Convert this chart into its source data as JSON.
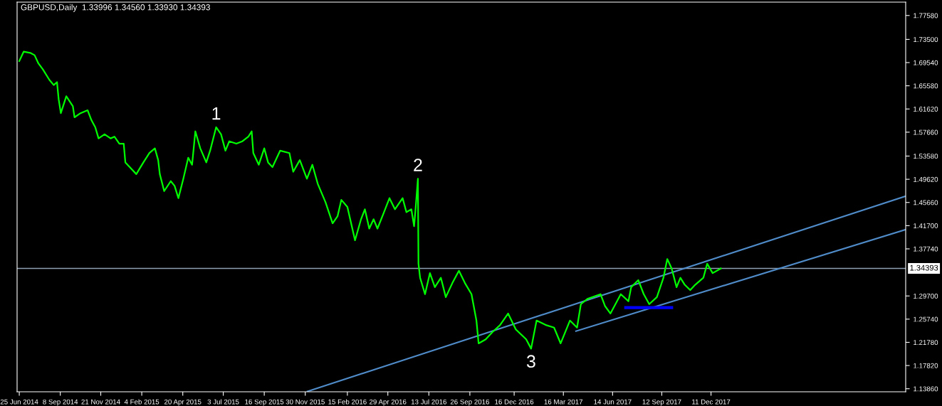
{
  "chart_data": {
    "type": "line",
    "title": "GBPUSD,Daily  1.33996 1.34560 1.33930 1.34393",
    "series": [
      {
        "color": "#00ff00",
        "x": [
          "2014-06-25",
          "2014-07-03",
          "2014-07-15",
          "2014-07-23",
          "2014-07-30",
          "2014-08-07",
          "2014-08-19",
          "2014-08-27",
          "2014-09-02",
          "2014-09-05",
          "2014-09-09",
          "2014-09-19",
          "2014-10-01",
          "2014-10-04",
          "2014-10-15",
          "2014-10-28",
          "2014-11-04",
          "2014-11-11",
          "2014-11-17",
          "2014-11-28",
          "2014-12-09",
          "2014-12-16",
          "2014-12-25",
          "2015-01-02",
          "2015-01-05",
          "2015-01-13",
          "2015-01-25",
          "2015-02-07",
          "2015-02-18",
          "2015-02-28",
          "2015-03-06",
          "2015-03-09",
          "2015-03-17",
          "2015-03-29",
          "2015-04-05",
          "2015-04-12",
          "2015-04-21",
          "2015-04-30",
          "2015-05-07",
          "2015-05-13",
          "2015-05-22",
          "2015-06-02",
          "2015-06-09",
          "2015-06-20",
          "2015-06-29",
          "2015-07-07",
          "2015-07-14",
          "2015-07-27",
          "2015-08-07",
          "2015-08-18",
          "2015-08-24",
          "2015-08-27",
          "2015-09-06",
          "2015-09-16",
          "2015-09-23",
          "2015-10-01",
          "2015-10-15",
          "2015-11-01",
          "2015-11-08",
          "2015-11-20",
          "2015-12-03",
          "2015-12-13",
          "2015-12-23",
          "2016-01-06",
          "2016-01-19",
          "2016-01-28",
          "2016-02-04",
          "2016-02-15",
          "2016-02-29",
          "2016-03-11",
          "2016-03-18",
          "2016-03-26",
          "2016-04-03",
          "2016-04-10",
          "2016-04-22",
          "2016-05-02",
          "2016-05-12",
          "2016-05-26",
          "2016-06-02",
          "2016-06-11",
          "2016-06-16",
          "2016-06-19",
          "2016-06-23",
          "2016-06-24",
          "2016-06-27",
          "2016-07-06",
          "2016-07-15",
          "2016-07-24",
          "2016-08-04",
          "2016-08-13",
          "2016-08-25",
          "2016-09-06",
          "2016-09-17",
          "2016-09-29",
          "2016-10-08",
          "2016-10-12",
          "2016-10-25",
          "2016-11-06",
          "2016-11-20",
          "2016-12-05",
          "2016-12-19",
          "2017-01-07",
          "2017-01-16",
          "2017-01-26",
          "2017-02-13",
          "2017-02-27",
          "2017-03-11",
          "2017-03-28",
          "2017-04-10",
          "2017-04-17",
          "2017-04-29",
          "2017-05-23",
          "2017-05-31",
          "2017-06-10",
          "2017-06-29",
          "2017-07-13",
          "2017-07-18",
          "2017-07-31",
          "2017-08-10",
          "2017-08-20",
          "2017-09-03",
          "2017-09-15",
          "2017-09-22",
          "2017-09-30",
          "2017-10-09",
          "2017-10-16",
          "2017-10-24",
          "2017-11-03",
          "2017-11-12",
          "2017-11-27",
          "2017-12-04",
          "2017-12-14",
          "2017-12-29"
        ],
        "values": [
          1.698,
          1.714,
          1.712,
          1.708,
          1.694,
          1.684,
          1.666,
          1.657,
          1.662,
          1.633,
          1.609,
          1.638,
          1.621,
          1.602,
          1.609,
          1.614,
          1.597,
          1.585,
          1.566,
          1.573,
          1.566,
          1.569,
          1.557,
          1.557,
          1.525,
          1.517,
          1.505,
          1.525,
          1.541,
          1.549,
          1.529,
          1.505,
          1.476,
          1.493,
          1.485,
          1.464,
          1.497,
          1.533,
          1.521,
          1.578,
          1.549,
          1.525,
          1.545,
          1.585,
          1.573,
          1.545,
          1.561,
          1.557,
          1.561,
          1.569,
          1.578,
          1.541,
          1.521,
          1.549,
          1.525,
          1.517,
          1.545,
          1.541,
          1.509,
          1.529,
          1.497,
          1.521,
          1.488,
          1.457,
          1.421,
          1.433,
          1.461,
          1.449,
          1.392,
          1.428,
          1.445,
          1.412,
          1.428,
          1.412,
          1.44,
          1.464,
          1.445,
          1.464,
          1.44,
          1.445,
          1.416,
          1.449,
          1.497,
          1.352,
          1.328,
          1.3,
          1.336,
          1.312,
          1.328,
          1.295,
          1.319,
          1.34,
          1.319,
          1.3,
          1.255,
          1.216,
          1.223,
          1.235,
          1.247,
          1.267,
          1.24,
          1.223,
          1.207,
          1.255,
          1.247,
          1.243,
          1.216,
          1.255,
          1.243,
          1.283,
          1.292,
          1.3,
          1.28,
          1.267,
          1.3,
          1.288,
          1.312,
          1.324,
          1.3,
          1.283,
          1.295,
          1.328,
          1.36,
          1.344,
          1.312,
          1.328,
          1.316,
          1.307,
          1.316,
          1.328,
          1.352,
          1.336,
          1.344
        ]
      },
      {
        "type": "line",
        "color": "#4f8cc9",
        "x": [
          "2015-12-04",
          "2018-12-01"
        ],
        "values": [
          1.134,
          1.467
        ]
      },
      {
        "type": "line",
        "color": "#4f8cc9",
        "x": [
          "2017-04-08",
          "2018-12-01"
        ],
        "values": [
          1.237,
          1.41
        ]
      },
      {
        "type": "line",
        "color": "#0000ff",
        "x": [
          "2017-07-08",
          "2017-09-30"
        ],
        "values": [
          1.277,
          1.277
        ]
      }
    ],
    "ref_lines": [
      {
        "axis": "y",
        "value": 1.34393,
        "label": "1.34393",
        "color": "#8ea0b4"
      }
    ],
    "annotations": [
      {
        "text": "1",
        "x": "2015-06-20",
        "y": 1.585
      },
      {
        "text": "2",
        "x": "2016-06-23",
        "y": 1.497
      },
      {
        "text": "3",
        "x": "2017-01-16",
        "y": 1.207
      }
    ],
    "xlim": [
      "2014-06-21",
      "2018-12-02"
    ],
    "xticks": [
      {
        "value": "2014-06-25",
        "label": "25 Jun 2014"
      },
      {
        "value": "2014-09-08",
        "label": "8 Sep 2014"
      },
      {
        "value": "2014-11-21",
        "label": "21 Nov 2014"
      },
      {
        "value": "2015-02-04",
        "label": "4 Feb 2015"
      },
      {
        "value": "2015-04-20",
        "label": "20 Apr 2015"
      },
      {
        "value": "2015-07-03",
        "label": "3 Jul 2015"
      },
      {
        "value": "2015-09-16",
        "label": "16 Sep 2015"
      },
      {
        "value": "2015-11-30",
        "label": "30 Nov 2015"
      },
      {
        "value": "2016-02-15",
        "label": "15 Feb 2016"
      },
      {
        "value": "2016-04-29",
        "label": "29 Apr 2016"
      },
      {
        "value": "2016-07-13",
        "label": "13 Jul 2016"
      },
      {
        "value": "2016-09-26",
        "label": "26 Sep 2016"
      },
      {
        "value": "2016-12-16",
        "label": "16 Dec 2016"
      },
      {
        "value": "2017-03-16",
        "label": "16 Mar 2017"
      },
      {
        "value": "2017-06-14",
        "label": "14 Jun 2017"
      },
      {
        "value": "2017-09-12",
        "label": "12 Sep 2017"
      },
      {
        "value": "2017-12-11",
        "label": "11 Dec 2017"
      }
    ],
    "ylim": [
      1.1334,
      1.7986
    ],
    "yticks": [
      {
        "value": 1.1386,
        "label": "1.13860"
      },
      {
        "value": 1.1782,
        "label": "1.17820"
      },
      {
        "value": 1.2178,
        "label": "1.21780"
      },
      {
        "value": 1.2574,
        "label": "1.25740"
      },
      {
        "value": 1.297,
        "label": "1.29700"
      },
      {
        "value": 1.3774,
        "label": "1.37740"
      },
      {
        "value": 1.417,
        "label": "1.41700"
      },
      {
        "value": 1.4566,
        "label": "1.45660"
      },
      {
        "value": 1.4962,
        "label": "1.49620"
      },
      {
        "value": 1.5358,
        "label": "1.53580"
      },
      {
        "value": 1.5766,
        "label": "1.57660"
      },
      {
        "value": 1.6162,
        "label": "1.61620"
      },
      {
        "value": 1.6558,
        "label": "1.65580"
      },
      {
        "value": 1.6954,
        "label": "1.69540"
      },
      {
        "value": 1.735,
        "label": "1.73500"
      },
      {
        "value": 1.7758,
        "label": "1.77580"
      }
    ],
    "grid": false,
    "legend": false,
    "marker": "none",
    "line_style": "solid"
  }
}
